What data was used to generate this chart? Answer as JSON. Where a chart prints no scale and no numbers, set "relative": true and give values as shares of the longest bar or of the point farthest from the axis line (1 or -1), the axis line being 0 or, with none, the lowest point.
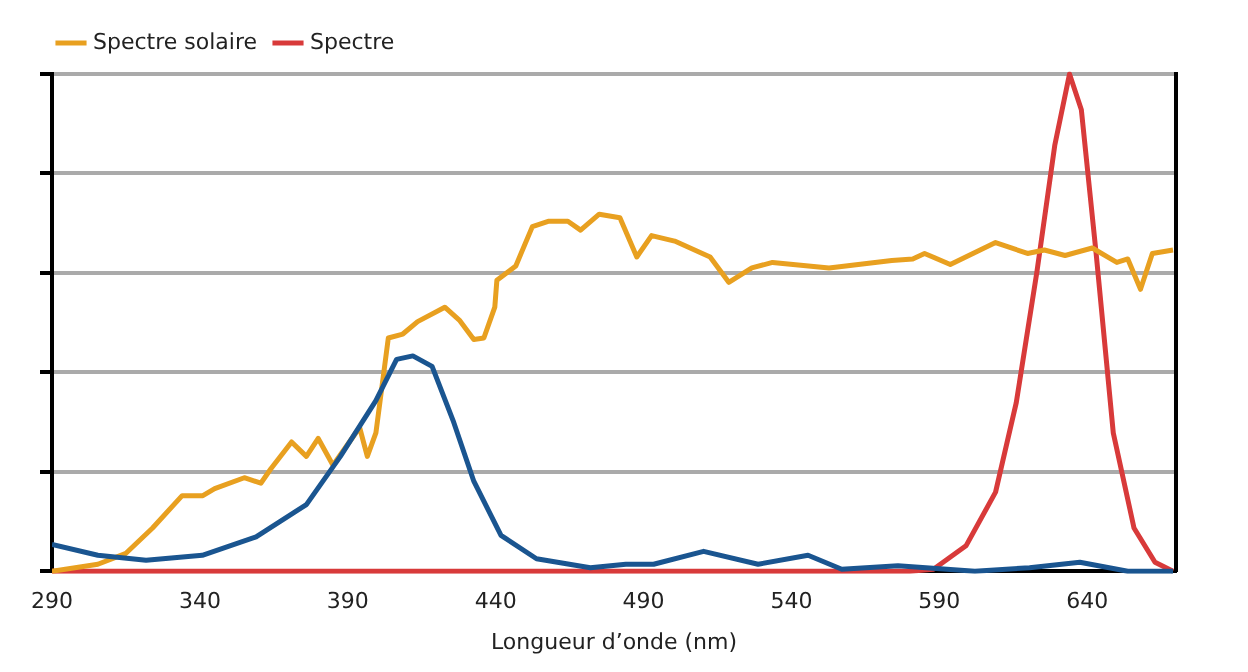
{
  "chart_data": {
    "type": "line",
    "xlabel": "Longueur d’onde (nm)",
    "relative": true,
    "grid": "y",
    "legend": "top left",
    "marker": "none",
    "xlim": [
      290,
      670
    ],
    "xticks": [
      290,
      340,
      390,
      440,
      490,
      540,
      590,
      640
    ],
    "series": [
      {
        "color": "#1a5590",
        "x": [
          290,
          305.5,
          321.8,
          340.8,
          359,
          376,
          387.5,
          399.5,
          406.5,
          412,
          418.5,
          425.6,
          432.6,
          441.8,
          453.8,
          472,
          484,
          493.4,
          510.3,
          528.7,
          545.6,
          557,
          576,
          602,
          620.5,
          637.5,
          653.7,
          669
        ],
        "values": [
          0.054,
          0.032,
          0.022,
          0.032,
          0.069,
          0.134,
          0.231,
          0.343,
          0.426,
          0.433,
          0.412,
          0.303,
          0.181,
          0.072,
          0.025,
          0.007,
          0.014,
          0.014,
          0.04,
          0.014,
          0.032,
          0.004,
          0.011,
          0,
          0.007,
          0.018,
          0,
          0
        ]
      },
      {
        "name": "Spectre solaire",
        "color": "#e8a020",
        "x": [
          290,
          305.5,
          315,
          324,
          334,
          341,
          345,
          355,
          360.6,
          364,
          371,
          376,
          380,
          385,
          394,
          396.6,
          399.5,
          403.7,
          408.6,
          413.6,
          422.8,
          427.7,
          432.6,
          436,
          439.7,
          440.4,
          446.8,
          452.4,
          458,
          464.4,
          468.7,
          475,
          482,
          487.7,
          492.7,
          500.5,
          512.5,
          518.8,
          526.6,
          533.6,
          552.7,
          573.9,
          581,
          585,
          593.7,
          609,
          619.8,
          625.5,
          632.5,
          641.7,
          650,
          653.7,
          658,
          662,
          669
        ],
        "values": [
          0,
          0.014,
          0.036,
          0.087,
          0.152,
          0.152,
          0.166,
          0.188,
          0.177,
          0.206,
          0.26,
          0.231,
          0.267,
          0.213,
          0.289,
          0.231,
          0.278,
          0.469,
          0.477,
          0.502,
          0.531,
          0.505,
          0.466,
          0.469,
          0.531,
          0.585,
          0.614,
          0.693,
          0.704,
          0.704,
          0.686,
          0.718,
          0.711,
          0.632,
          0.675,
          0.664,
          0.632,
          0.581,
          0.61,
          0.621,
          0.61,
          0.625,
          0.628,
          0.639,
          0.617,
          0.661,
          0.639,
          0.646,
          0.635,
          0.65,
          0.621,
          0.628,
          0.567,
          0.639,
          0.646
        ]
      },
      {
        "name": "Spectre",
        "color": "#d83a3a",
        "x": [
          290,
          560,
          580,
          588,
          599,
          609,
          616,
          623,
          629,
          634,
          638,
          643,
          648.8,
          655.8,
          662.9,
          669
        ],
        "values": [
          0,
          0,
          0,
          0.004,
          0.051,
          0.159,
          0.339,
          0.603,
          0.856,
          1,
          0.928,
          0.639,
          0.278,
          0.087,
          0.018,
          0
        ]
      }
    ]
  }
}
